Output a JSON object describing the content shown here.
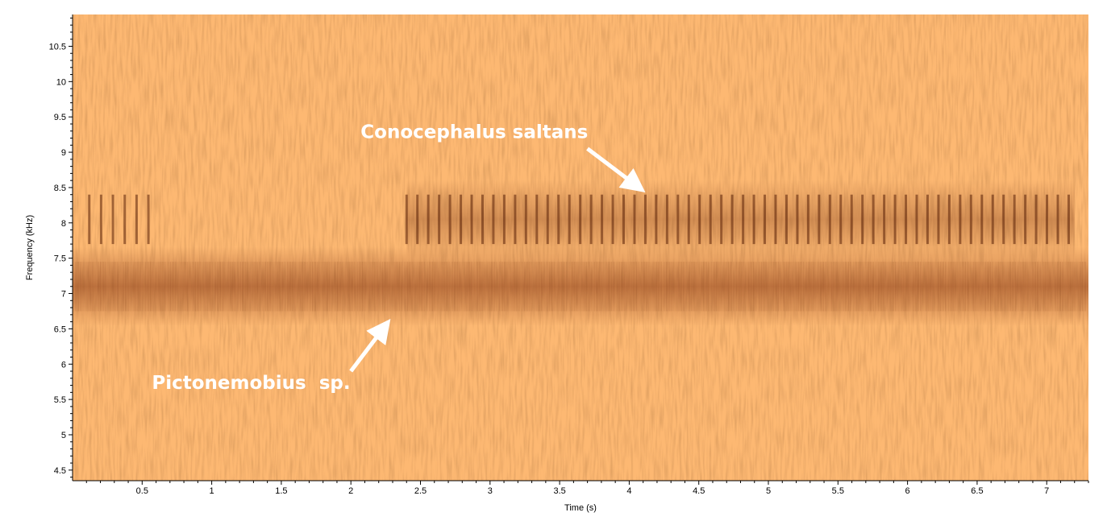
{
  "chart_data": {
    "type": "heatmap",
    "title": "",
    "xlabel": "Time (s)",
    "ylabel": "Frequency (kHz)",
    "xlim": [
      0,
      7.3
    ],
    "ylim": [
      4.35,
      10.95
    ],
    "x_ticks": [
      "0.5",
      "1",
      "1.5",
      "2",
      "2.5",
      "3",
      "3.5",
      "4",
      "4.5",
      "5",
      "5.5",
      "6",
      "6.5",
      "7"
    ],
    "y_ticks": [
      "4.5",
      "5",
      "5.5",
      "6",
      "6.5",
      "7",
      "7.5",
      "8",
      "8.5",
      "9",
      "9.5",
      "10",
      "10.5"
    ],
    "grid": false,
    "colors": {
      "background": "#fdb872",
      "energy": "#8e3e18"
    },
    "bands": [
      {
        "name": "low-band",
        "t_start": 0.0,
        "t_end": 7.3,
        "f_center": 7.1,
        "f_halfwidth": 0.35
      },
      {
        "name": "pulse-band",
        "t_start": 2.4,
        "t_end": 7.2,
        "f_center": 8.05,
        "f_halfwidth": 0.35
      }
    ],
    "annotations": [
      {
        "id": "conocephalus",
        "text": "Conocephalus saltans",
        "text_x": 2.07,
        "text_y": 9.2,
        "arrow_from": [
          3.7,
          9.05
        ],
        "arrow_to": [
          4.07,
          8.5
        ]
      },
      {
        "id": "pictonemobius",
        "text": "Pictonemobius  sp.",
        "text_x": 0.57,
        "text_y": 5.65,
        "arrow_from": [
          2.0,
          5.9
        ],
        "arrow_to": [
          2.25,
          6.55
        ]
      }
    ]
  }
}
